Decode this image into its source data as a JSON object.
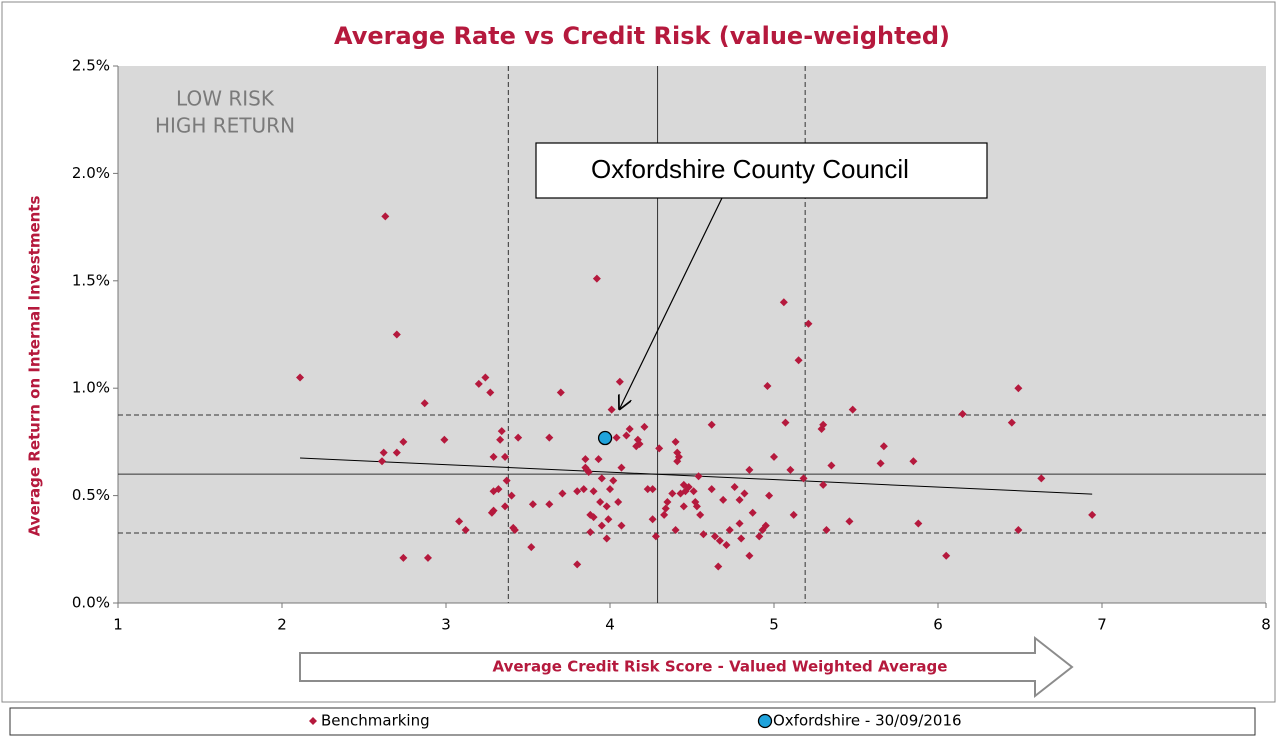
{
  "chart_data": {
    "type": "scatter",
    "title": "Average Rate vs Credit Risk (value-weighted)",
    "xlabel": "Average Credit Risk Score - Valued Weighted Average",
    "ylabel": "Average Return on Internal Investments",
    "xlim": [
      1,
      8
    ],
    "xticks": [
      1,
      2,
      3,
      4,
      5,
      6,
      7,
      8
    ],
    "ylim": [
      0,
      2.5
    ],
    "yticks": [
      {
        "value": 0,
        "label": "0.0%"
      },
      {
        "value": 0.5,
        "label": "0.5%"
      },
      {
        "value": 1,
        "label": "1.0%"
      },
      {
        "value": 1.5,
        "label": "1.5%"
      },
      {
        "value": 2,
        "label": "2.0%"
      },
      {
        "value": 2.5,
        "label": "2.5%"
      }
    ],
    "grid": false,
    "plot_background": "#d9d9d9",
    "vlines": [
      {
        "value": 3.38,
        "style": "dashed"
      },
      {
        "value": 4.29,
        "style": "solid"
      },
      {
        "value": 5.19,
        "style": "dashed"
      }
    ],
    "hlines": [
      {
        "value": 0.875,
        "style": "dashed"
      },
      {
        "value": 0.6,
        "style": "solid"
      },
      {
        "value": 0.326,
        "style": "dashed"
      }
    ],
    "trendline": {
      "x": [
        2.11,
        6.94
      ],
      "y": [
        0.675,
        0.507
      ]
    },
    "annotations": [
      {
        "text": [
          "LOW RISK",
          "HIGH RETURN"
        ]
      },
      {
        "text": "Oxfordshire County Council"
      }
    ],
    "series": [
      {
        "name": "Benchmarking",
        "color": "#b5193d",
        "marker": "diamond",
        "x": [
          2.11,
          2.63,
          2.7,
          2.62,
          2.61,
          2.7,
          2.74,
          2.74,
          2.89,
          2.87,
          2.99,
          3.08,
          3.12,
          3.2,
          3.24,
          3.27,
          3.29,
          3.29,
          3.28,
          3.29,
          3.32,
          3.33,
          3.34,
          3.36,
          3.37,
          3.36,
          3.4,
          3.42,
          3.41,
          3.44,
          3.52,
          3.53,
          3.63,
          3.63,
          3.7,
          3.71,
          3.8,
          3.8,
          3.84,
          3.85,
          3.85,
          3.86,
          3.87,
          3.88,
          3.88,
          3.9,
          3.9,
          3.92,
          3.93,
          3.94,
          3.95,
          3.95,
          3.98,
          3.98,
          3.99,
          4.0,
          4.01,
          4.02,
          4.04,
          4.05,
          4.06,
          4.07,
          4.07,
          4.1,
          4.12,
          4.16,
          4.18,
          4.17,
          4.21,
          4.23,
          4.26,
          4.26,
          4.28,
          4.3,
          4.33,
          4.34,
          4.35,
          4.38,
          4.4,
          4.4,
          4.41,
          4.42,
          4.41,
          4.43,
          4.45,
          4.45,
          4.46,
          4.48,
          4.51,
          4.52,
          4.53,
          4.54,
          4.55,
          4.57,
          4.62,
          4.62,
          4.64,
          4.66,
          4.67,
          4.69,
          4.71,
          4.73,
          4.76,
          4.79,
          4.79,
          4.8,
          4.82,
          4.85,
          4.85,
          4.87,
          4.91,
          4.93,
          4.95,
          4.96,
          4.97,
          5.0,
          5.06,
          5.07,
          5.1,
          5.12,
          5.15,
          5.18,
          5.21,
          5.29,
          5.3,
          5.3,
          5.32,
          5.35,
          5.48,
          5.46,
          5.65,
          5.67,
          5.85,
          5.88,
          6.05,
          6.15,
          6.45,
          6.49,
          6.49,
          6.63,
          6.94
        ],
        "y": [
          1.05,
          1.8,
          1.25,
          0.7,
          0.66,
          0.7,
          0.75,
          0.21,
          0.21,
          0.93,
          0.76,
          0.38,
          0.34,
          1.02,
          1.05,
          0.98,
          0.68,
          0.52,
          0.42,
          0.43,
          0.53,
          0.76,
          0.8,
          0.68,
          0.57,
          0.45,
          0.5,
          0.34,
          0.35,
          0.77,
          0.26,
          0.46,
          0.46,
          0.77,
          0.98,
          0.51,
          0.52,
          0.18,
          0.53,
          0.67,
          0.63,
          0.62,
          0.61,
          0.41,
          0.33,
          0.52,
          0.4,
          1.51,
          0.67,
          0.47,
          0.58,
          0.36,
          0.45,
          0.3,
          0.39,
          0.53,
          0.9,
          0.57,
          0.77,
          0.47,
          1.03,
          0.36,
          0.63,
          0.78,
          0.81,
          0.73,
          0.74,
          0.76,
          0.82,
          0.53,
          0.39,
          0.53,
          0.31,
          0.72,
          0.41,
          0.44,
          0.47,
          0.51,
          0.75,
          0.34,
          0.7,
          0.68,
          0.66,
          0.51,
          0.45,
          0.55,
          0.52,
          0.54,
          0.52,
          0.47,
          0.45,
          0.59,
          0.41,
          0.32,
          0.53,
          0.83,
          0.31,
          0.17,
          0.29,
          0.48,
          0.27,
          0.34,
          0.54,
          0.48,
          0.37,
          0.3,
          0.51,
          0.62,
          0.22,
          0.42,
          0.31,
          0.34,
          0.36,
          1.01,
          0.5,
          0.68,
          1.4,
          0.84,
          0.62,
          0.41,
          1.13,
          0.58,
          1.3,
          0.81,
          0.83,
          0.55,
          0.34,
          0.64,
          0.9,
          0.38,
          0.65,
          0.73,
          0.66,
          0.37,
          0.22,
          0.88,
          0.84,
          1.0,
          0.34,
          0.58,
          0.41
        ]
      },
      {
        "name": "Oxfordshire - 30/09/2016",
        "color": "#1fa3dc",
        "marker": "circle",
        "x": [
          3.97
        ],
        "y": [
          0.768
        ]
      }
    ]
  }
}
